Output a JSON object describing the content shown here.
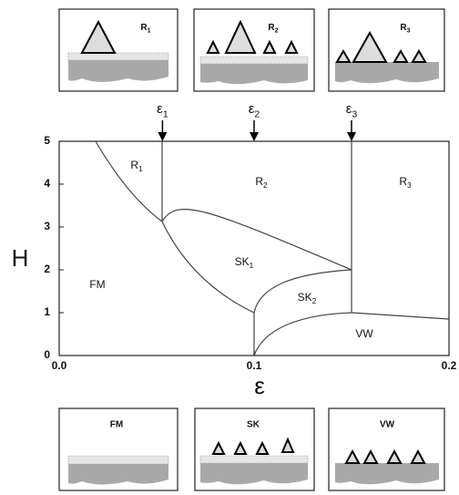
{
  "x_axis": {
    "label": "ε",
    "lim": [
      0,
      0.2
    ],
    "ticks": [
      {
        "value": 0,
        "label": "0.0"
      },
      {
        "value": 0.1,
        "label": "0.1"
      },
      {
        "value": 0.2,
        "label": "0.2"
      }
    ]
  },
  "y_axis": {
    "label": "H",
    "lim": [
      0,
      5
    ],
    "ticks": [
      0,
      1,
      2,
      3,
      4,
      5
    ]
  },
  "markers": [
    {
      "symbol": "ε",
      "sub": "1",
      "value": 0.053
    },
    {
      "symbol": "ε",
      "sub": "2",
      "value": 0.1
    },
    {
      "symbol": "ε",
      "sub": "3",
      "value": 0.15
    }
  ],
  "regions": [
    {
      "name": "R",
      "sub": "1"
    },
    {
      "name": "R",
      "sub": "2"
    },
    {
      "name": "R",
      "sub": "3"
    },
    {
      "name": "SK",
      "sub": "1"
    },
    {
      "name": "SK",
      "sub": "2"
    },
    {
      "name": "FM"
    },
    {
      "name": "VW"
    }
  ],
  "top_panels": [
    {
      "name": "R",
      "sub": "1"
    },
    {
      "name": "R",
      "sub": "2"
    },
    {
      "name": "R",
      "sub": "3"
    }
  ],
  "bottom_panels": [
    "FM",
    "SK",
    "VW"
  ]
}
